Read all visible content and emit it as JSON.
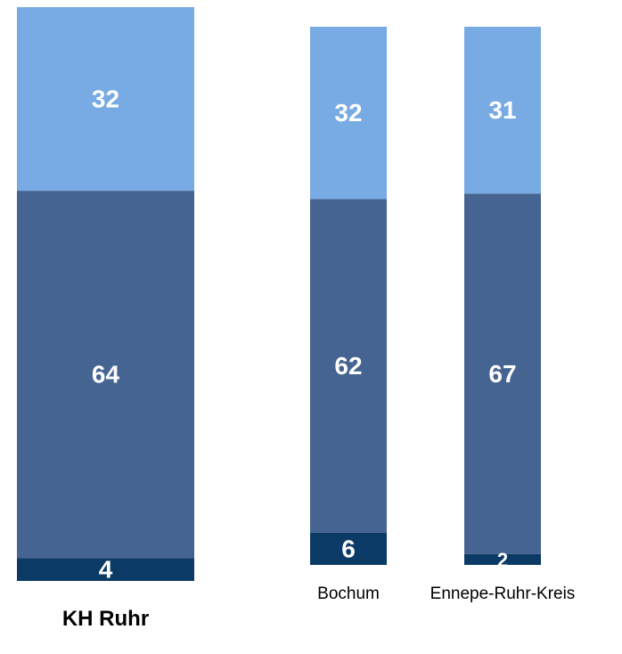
{
  "chart_data": {
    "type": "bar",
    "stacked": true,
    "percent_stacked": true,
    "categories": [
      "KH Ruhr",
      "Bochum",
      "Ennepe-Ruhr-Kreis"
    ],
    "series": [
      {
        "values": [
          4,
          6,
          2
        ],
        "color": "#0b3a66"
      },
      {
        "values": [
          64,
          62,
          67
        ],
        "color": "#456491"
      },
      {
        "values": [
          32,
          32,
          31
        ],
        "color": "#78aae3"
      }
    ],
    "ylim": [
      0,
      100
    ],
    "grid": false,
    "legend": "none",
    "data_labels": true
  }
}
